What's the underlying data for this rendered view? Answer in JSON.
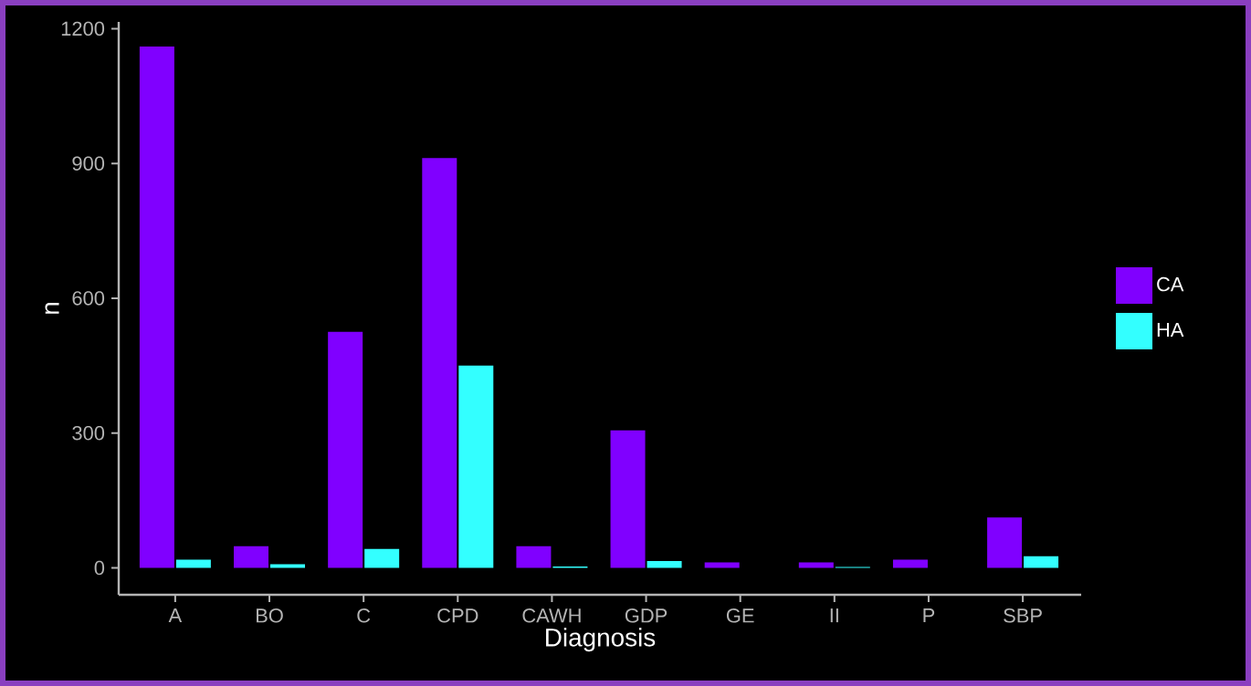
{
  "chart_data": {
    "type": "bar",
    "xlabel": "Diagnosis",
    "ylabel": "n",
    "categories": [
      "A",
      "BO",
      "C",
      "CPD",
      "CAWH",
      "GDP",
      "GE",
      "II",
      "P",
      "SBP"
    ],
    "series": [
      {
        "name": "CA",
        "color": "#8000ff",
        "values": [
          1160,
          48,
          525,
          912,
          48,
          306,
          12,
          12,
          18,
          112
        ]
      },
      {
        "name": "HA",
        "color": "#33ffff",
        "values": [
          18,
          8,
          42,
          450,
          3,
          15,
          null,
          2,
          null,
          26
        ]
      }
    ],
    "ylim": [
      -60,
      1215
    ],
    "yticks": [
      0,
      300,
      600,
      900,
      1200
    ],
    "legend": "right"
  }
}
